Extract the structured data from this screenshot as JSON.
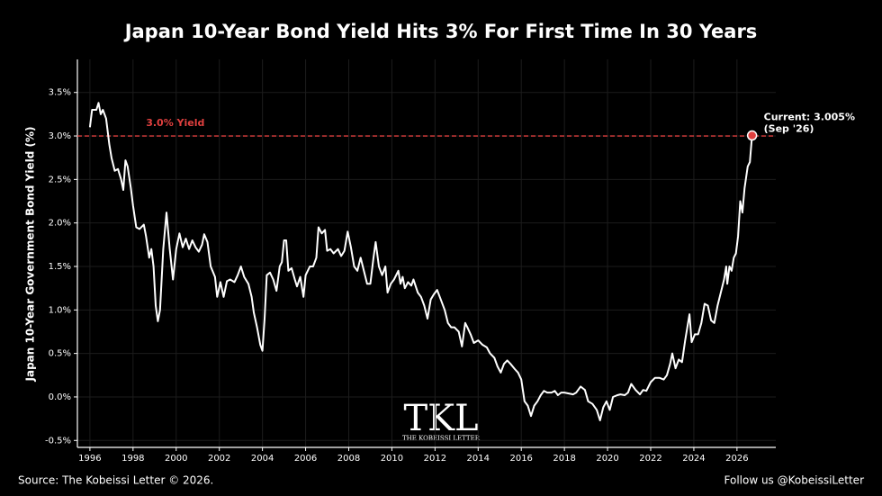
{
  "chart_data": {
    "type": "line",
    "title": "Japan 10-Year Bond Yield Hits 3% For First Time In 30 Years",
    "ylabel": "Japan 10-Year Government Bond Yield (%)",
    "xlim": [
      1995.42,
      2027.8
    ],
    "ylim": [
      -0.58,
      3.88
    ],
    "xticks": [
      1996,
      1998,
      2000,
      2002,
      2004,
      2006,
      2008,
      2010,
      2012,
      2014,
      2016,
      2018,
      2020,
      2022,
      2024,
      2026
    ],
    "yticks": [
      {
        "value": -0.5,
        "label": "-0.5%"
      },
      {
        "value": 0.0,
        "label": "0.0%"
      },
      {
        "value": 0.5,
        "label": "0.5%"
      },
      {
        "value": 1.0,
        "label": "1.0%"
      },
      {
        "value": 1.5,
        "label": "1.5%"
      },
      {
        "value": 2.0,
        "label": "2.0%"
      },
      {
        "value": 2.5,
        "label": "2.5%"
      },
      {
        "value": 3.0,
        "label": "3.0%"
      },
      {
        "value": 3.5,
        "label": "3.5%"
      }
    ],
    "grid": true,
    "x": [
      1996.0,
      1996.1,
      1996.3,
      1996.4,
      1996.5,
      1996.6,
      1996.75,
      1996.9,
      1997.0,
      1997.15,
      1997.3,
      1997.45,
      1997.55,
      1997.65,
      1997.75,
      1997.9,
      1998.0,
      1998.15,
      1998.3,
      1998.5,
      1998.6,
      1998.75,
      1998.85,
      1998.95,
      1999.05,
      1999.15,
      1999.25,
      1999.4,
      1999.55,
      1999.7,
      1999.85,
      2000.0,
      2000.15,
      2000.3,
      2000.45,
      2000.6,
      2000.75,
      2000.9,
      2001.05,
      2001.2,
      2001.3,
      2001.45,
      2001.6,
      2001.8,
      2001.9,
      2002.05,
      2002.2,
      2002.35,
      2002.5,
      2002.7,
      2002.85,
      2003.0,
      2003.15,
      2003.35,
      2003.5,
      2003.6,
      2003.75,
      2003.9,
      2004.0,
      2004.1,
      2004.2,
      2004.35,
      2004.5,
      2004.65,
      2004.8,
      2004.9,
      2005.0,
      2005.1,
      2005.2,
      2005.35,
      2005.5,
      2005.6,
      2005.75,
      2005.9,
      2006.0,
      2006.2,
      2006.35,
      2006.5,
      2006.6,
      2006.75,
      2006.9,
      2007.0,
      2007.15,
      2007.3,
      2007.5,
      2007.65,
      2007.8,
      2007.95,
      2008.1,
      2008.25,
      2008.4,
      2008.55,
      2008.7,
      2008.85,
      2009.0,
      2009.15,
      2009.25,
      2009.4,
      2009.55,
      2009.7,
      2009.8,
      2009.95,
      2010.1,
      2010.3,
      2010.4,
      2010.5,
      2010.6,
      2010.75,
      2010.9,
      2011.0,
      2011.2,
      2011.35,
      2011.5,
      2011.65,
      2011.8,
      2011.95,
      2012.1,
      2012.3,
      2012.45,
      2012.6,
      2012.75,
      2012.9,
      2013.1,
      2013.25,
      2013.4,
      2013.5,
      2013.65,
      2013.8,
      2014.0,
      2014.2,
      2014.4,
      2014.55,
      2014.75,
      2014.9,
      2015.05,
      2015.2,
      2015.35,
      2015.5,
      2015.7,
      2015.85,
      2016.0,
      2016.15,
      2016.3,
      2016.45,
      2016.6,
      2016.75,
      2016.9,
      2017.05,
      2017.2,
      2017.4,
      2017.55,
      2017.7,
      2017.85,
      2018.0,
      2018.2,
      2018.4,
      2018.55,
      2018.75,
      2018.95,
      2019.1,
      2019.3,
      2019.5,
      2019.65,
      2019.8,
      2019.95,
      2020.1,
      2020.25,
      2020.45,
      2020.6,
      2020.8,
      2020.95,
      2021.1,
      2021.3,
      2021.5,
      2021.65,
      2021.8,
      2022.0,
      2022.2,
      2022.4,
      2022.6,
      2022.75,
      2022.9,
      2023.0,
      2023.15,
      2023.3,
      2023.45,
      2023.6,
      2023.8,
      2023.9,
      2024.05,
      2024.2,
      2024.35,
      2024.5,
      2024.65,
      2024.8,
      2024.95,
      2025.1,
      2025.25,
      2025.4,
      2025.5,
      2025.55,
      2025.65,
      2025.75,
      2025.85,
      2025.95,
      2026.05,
      2026.15,
      2026.25,
      2026.35,
      2026.5,
      2026.6,
      2026.7
    ],
    "series": [
      {
        "name": "Japan 10-Year Bond Yield",
        "color": "#ffffff",
        "values": [
          3.1,
          3.3,
          3.3,
          3.38,
          3.25,
          3.3,
          3.2,
          2.9,
          2.75,
          2.6,
          2.62,
          2.5,
          2.38,
          2.72,
          2.65,
          2.4,
          2.2,
          1.95,
          1.93,
          1.98,
          1.85,
          1.6,
          1.7,
          1.5,
          1.05,
          0.87,
          1.0,
          1.7,
          2.12,
          1.7,
          1.35,
          1.7,
          1.88,
          1.72,
          1.82,
          1.7,
          1.8,
          1.72,
          1.67,
          1.75,
          1.87,
          1.78,
          1.5,
          1.38,
          1.15,
          1.32,
          1.15,
          1.33,
          1.35,
          1.32,
          1.4,
          1.5,
          1.38,
          1.3,
          1.15,
          0.97,
          0.8,
          0.6,
          0.53,
          0.9,
          1.4,
          1.43,
          1.35,
          1.22,
          1.5,
          1.55,
          1.8,
          1.8,
          1.45,
          1.48,
          1.35,
          1.27,
          1.38,
          1.15,
          1.4,
          1.5,
          1.5,
          1.6,
          1.95,
          1.88,
          1.92,
          1.68,
          1.7,
          1.65,
          1.7,
          1.62,
          1.68,
          1.9,
          1.72,
          1.5,
          1.45,
          1.6,
          1.45,
          1.3,
          1.3,
          1.6,
          1.78,
          1.5,
          1.4,
          1.5,
          1.2,
          1.3,
          1.35,
          1.45,
          1.3,
          1.38,
          1.25,
          1.32,
          1.28,
          1.35,
          1.2,
          1.15,
          1.05,
          0.9,
          1.12,
          1.18,
          1.23,
          1.1,
          1.0,
          0.85,
          0.8,
          0.8,
          0.75,
          0.58,
          0.85,
          0.8,
          0.72,
          0.62,
          0.65,
          0.6,
          0.57,
          0.5,
          0.45,
          0.35,
          0.28,
          0.38,
          0.42,
          0.38,
          0.32,
          0.28,
          0.2,
          -0.05,
          -0.1,
          -0.22,
          -0.1,
          -0.05,
          0.02,
          0.07,
          0.05,
          0.05,
          0.07,
          0.02,
          0.05,
          0.05,
          0.04,
          0.03,
          0.05,
          0.12,
          0.08,
          -0.05,
          -0.08,
          -0.15,
          -0.27,
          -0.12,
          -0.05,
          -0.15,
          0.0,
          0.02,
          0.03,
          0.02,
          0.05,
          0.15,
          0.08,
          0.03,
          0.08,
          0.07,
          0.17,
          0.22,
          0.22,
          0.2,
          0.25,
          0.38,
          0.5,
          0.33,
          0.43,
          0.4,
          0.65,
          0.95,
          0.63,
          0.72,
          0.72,
          0.85,
          1.07,
          1.05,
          0.88,
          0.85,
          1.05,
          1.2,
          1.35,
          1.5,
          1.3,
          1.5,
          1.45,
          1.6,
          1.65,
          1.85,
          2.25,
          2.12,
          2.4,
          2.65,
          2.7,
          3.005
        ]
      }
    ],
    "reference_line": {
      "value": 3.0,
      "label": "3.0% Yield",
      "color": "#e0403f"
    },
    "current_marker": {
      "color": "#e0403f",
      "text": "Current: 3.005%",
      "subtext": "(Sep '26)"
    },
    "logo": {
      "text": "TKL",
      "subtext": "THE KOBEISSI LETTER"
    },
    "source": "Source: The Kobeissi Letter © 2026.",
    "credit": "Follow us @KobeissiLetter"
  }
}
